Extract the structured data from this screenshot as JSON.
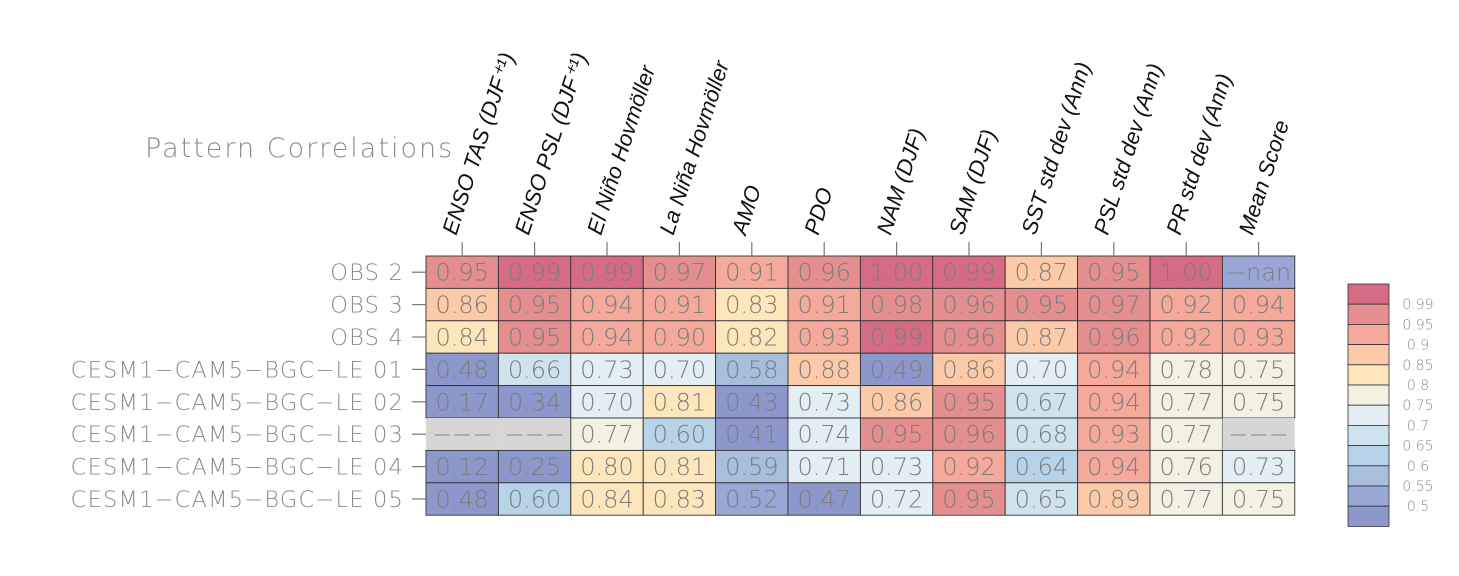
{
  "chart_data": {
    "type": "heatmap",
    "title": "Pattern Correlations",
    "columns": [
      "ENSO TAS (DJF⁺¹)",
      "ENSO PSL (DJF⁺¹)",
      "El Niño Hovmöller",
      "La Niña Hovmöller",
      "AMO",
      "PDO",
      "NAM (DJF)",
      "SAM (DJF)",
      "SST std dev (Ann)",
      "PSL std dev (Ann)",
      "PR std dev (Ann)",
      "Mean Score"
    ],
    "rows": [
      "OBS 2",
      "OBS 3",
      "OBS 4",
      "CESM1−CAM5−BGC−LE 01",
      "CESM1−CAM5−BGC−LE 02",
      "CESM1−CAM5−BGC−LE 03",
      "CESM1−CAM5−BGC−LE 04",
      "CESM1−CAM5−BGC−LE 05"
    ],
    "values": [
      [
        0.95,
        0.99,
        0.99,
        0.97,
        0.91,
        0.96,
        1.0,
        0.99,
        0.87,
        0.95,
        1.0,
        null
      ],
      [
        0.86,
        0.95,
        0.94,
        0.91,
        0.83,
        0.91,
        0.98,
        0.96,
        0.95,
        0.97,
        0.92,
        0.94
      ],
      [
        0.84,
        0.95,
        0.94,
        0.9,
        0.82,
        0.93,
        0.99,
        0.96,
        0.87,
        0.96,
        0.92,
        0.93
      ],
      [
        0.48,
        0.66,
        0.73,
        0.7,
        0.58,
        0.88,
        0.49,
        0.86,
        0.7,
        0.94,
        0.78,
        0.75
      ],
      [
        0.17,
        0.34,
        0.7,
        0.81,
        0.43,
        0.73,
        0.86,
        0.95,
        0.67,
        0.94,
        0.77,
        0.75
      ],
      [
        null,
        null,
        0.77,
        0.6,
        0.41,
        0.74,
        0.95,
        0.96,
        0.68,
        0.93,
        0.77,
        null
      ],
      [
        0.12,
        0.25,
        0.8,
        0.81,
        0.59,
        0.71,
        0.73,
        0.92,
        0.64,
        0.94,
        0.76,
        0.73
      ],
      [
        0.48,
        0.6,
        0.84,
        0.83,
        0.52,
        0.47,
        0.72,
        0.95,
        0.65,
        0.89,
        0.77,
        0.75
      ]
    ],
    "cell_labels": [
      [
        "0.95",
        "0.99",
        "0.99",
        "0.97",
        "0.91",
        "0.96",
        "1.00",
        "0.99",
        "0.87",
        "0.95",
        "1.00",
        "−nan"
      ],
      [
        "0.86",
        "0.95",
        "0.94",
        "0.91",
        "0.83",
        "0.91",
        "0.98",
        "0.96",
        "0.95",
        "0.97",
        "0.92",
        "0.94"
      ],
      [
        "0.84",
        "0.95",
        "0.94",
        "0.90",
        "0.82",
        "0.93",
        "0.99",
        "0.96",
        "0.87",
        "0.96",
        "0.92",
        "0.93"
      ],
      [
        "0.48",
        "0.66",
        "0.73",
        "0.70",
        "0.58",
        "0.88",
        "0.49",
        "0.86",
        "0.70",
        "0.94",
        "0.78",
        "0.75"
      ],
      [
        "0.17",
        "0.34",
        "0.70",
        "0.81",
        "0.43",
        "0.73",
        "0.86",
        "0.95",
        "0.67",
        "0.94",
        "0.77",
        "0.75"
      ],
      [
        "−−−",
        "−−−",
        "0.77",
        "0.60",
        "0.41",
        "0.74",
        "0.95",
        "0.96",
        "0.68",
        "0.93",
        "0.77",
        "−−−"
      ],
      [
        "0.12",
        "0.25",
        "0.80",
        "0.81",
        "0.59",
        "0.71",
        "0.73",
        "0.92",
        "0.64",
        "0.94",
        "0.76",
        "0.73"
      ],
      [
        "0.48",
        "0.60",
        "0.84",
        "0.83",
        "0.52",
        "0.47",
        "0.72",
        "0.95",
        "0.65",
        "0.89",
        "0.77",
        "0.75"
      ]
    ],
    "nan_cells": [
      [
        0,
        11
      ]
    ],
    "missing_cells": [
      [
        5,
        0
      ],
      [
        5,
        1
      ],
      [
        5,
        11
      ]
    ],
    "legend": {
      "labels": [
        "0.99",
        "0.95",
        "0.9",
        "0.85",
        "0.8",
        "0.75",
        "0.7",
        "0.65",
        "0.6",
        "0.55",
        "0.5"
      ],
      "colors": [
        "#d66c83",
        "#e58e8f",
        "#f4a99a",
        "#fccaa8",
        "#fde6bc",
        "#f3f1e2",
        "#e3eff5",
        "#cfe3ef",
        "#b8d3e7",
        "#a7bedd",
        "#98a7d3",
        "#8c97cb"
      ],
      "placement": "right"
    },
    "colors": {
      "nan": "#9aa6d5",
      "missing": "#d6d6d6"
    }
  }
}
